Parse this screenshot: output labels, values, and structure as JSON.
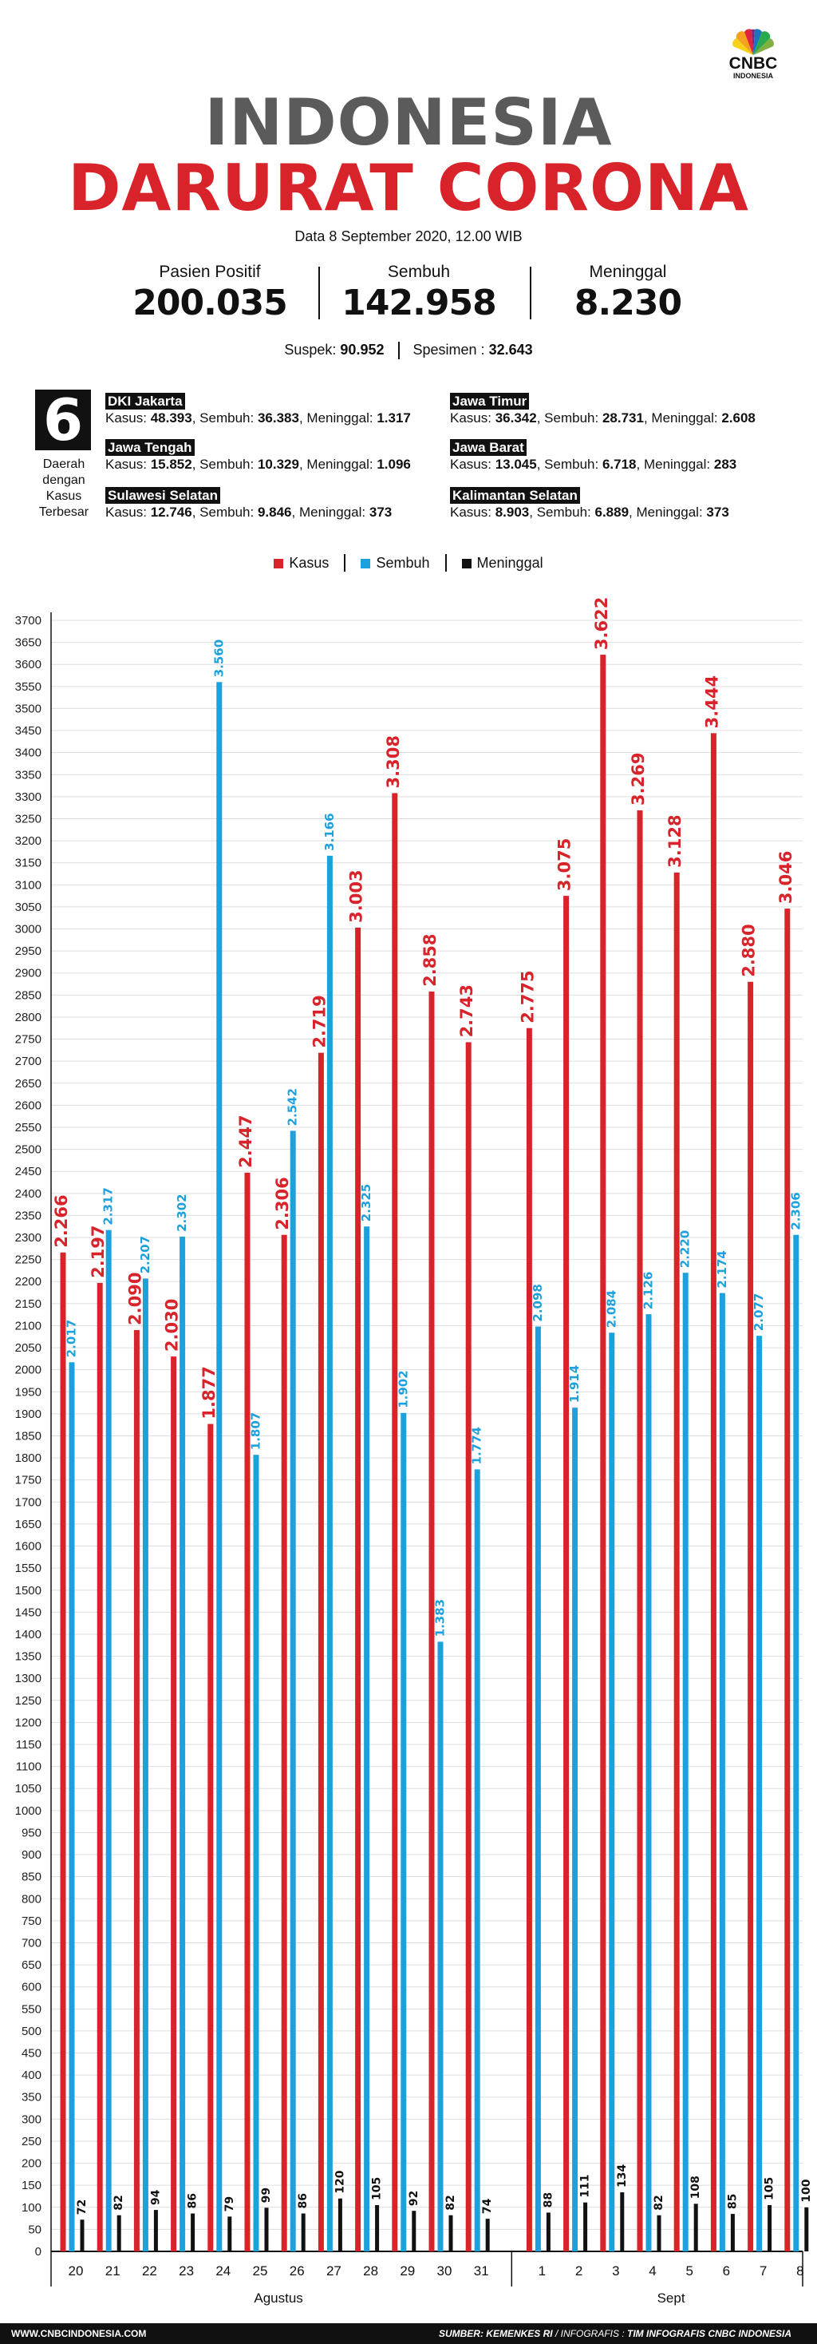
{
  "brand": {
    "name": "CNBC",
    "sub": "INDONESIA"
  },
  "title": {
    "line1": "INDONESIA",
    "line2": "DARURAT CORONA"
  },
  "date_note": "Data 8 September 2020, 12.00 WIB",
  "stats": [
    {
      "label": "Pasien Positif",
      "value": "200.035"
    },
    {
      "label": "Sembuh",
      "value": "142.958"
    },
    {
      "label": "Meninggal",
      "value": "8.230"
    }
  ],
  "suspek": {
    "label": "Suspek:",
    "value": "90.952",
    "spesimen_label": "Spesimen :",
    "spesimen_value": "32.643"
  },
  "regions_block": {
    "number": "6",
    "caption": [
      "Daerah",
      "dengan",
      "Kasus",
      "Terbesar"
    ],
    "items": [
      {
        "name": "DKI Jakarta",
        "kasus_label": "Kasus:",
        "kasus": "48.393",
        "sembuh_label": "Sembuh:",
        "sembuh": "36.383",
        "meninggal_label": "Meninggal:",
        "meninggal": "1.317"
      },
      {
        "name": "Jawa Timur",
        "kasus_label": "Kasus:",
        "kasus": "36.342",
        "sembuh_label": "Sembuh:",
        "sembuh": "28.731",
        "meninggal_label": "Meninggal:",
        "meninggal": "2.608"
      },
      {
        "name": "Jawa Tengah",
        "kasus_label": "Kasus:",
        "kasus": "15.852",
        "sembuh_label": "Sembuh:",
        "sembuh": "10.329",
        "meninggal_label": "Meninggal:",
        "meninggal": "1.096"
      },
      {
        "name": "Jawa Barat",
        "kasus_label": "Kasus:",
        "kasus": "13.045",
        "sembuh_label": "Sembuh:",
        "sembuh": "6.718",
        "meninggal_label": "Meninggal:",
        "meninggal": "283"
      },
      {
        "name": "Sulawesi Selatan",
        "kasus_label": "Kasus:",
        "kasus": "12.746",
        "sembuh_label": "Sembuh:",
        "sembuh": "9.846",
        "meninggal_label": "Meninggal:",
        "meninggal": "373"
      },
      {
        "name": "Kalimantan Selatan",
        "kasus_label": "Kasus:",
        "kasus": "8.903",
        "sembuh_label": "Sembuh:",
        "sembuh": "6.889",
        "meninggal_label": "Meninggal:",
        "meninggal": "373"
      }
    ]
  },
  "legend": [
    {
      "name": "Kasus",
      "color": "#d8232a"
    },
    {
      "name": "Sembuh",
      "color": "#1da1dc"
    },
    {
      "name": "Meninggal",
      "color": "#111111"
    }
  ],
  "chart_data": {
    "type": "bar",
    "categories": [
      "20",
      "21",
      "22",
      "23",
      "24",
      "25",
      "26",
      "27",
      "28",
      "29",
      "30",
      "31",
      "1",
      "2",
      "3",
      "4",
      "5",
      "6",
      "7",
      "8"
    ],
    "month_groups": [
      {
        "label": "Agustus",
        "from": 0,
        "to": 11
      },
      {
        "label": "Sept",
        "from": 12,
        "to": 19
      }
    ],
    "series": [
      {
        "name": "Kasus",
        "color": "#d8232a",
        "values": [
          2266,
          2197,
          2090,
          2030,
          1877,
          2447,
          2306,
          2719,
          3003,
          3308,
          2858,
          2743,
          2775,
          3075,
          3622,
          3269,
          3128,
          3444,
          2880,
          3046
        ],
        "labels": [
          "2.266",
          "2.197",
          "2.090",
          "2.030",
          "1.877",
          "2.447",
          "2.306",
          "2.719",
          "3.003",
          "3.308",
          "2.858",
          "2.743",
          "2.775",
          "3.075",
          "3.622",
          "3.269",
          "3.128",
          "3.444",
          "2.880",
          "3.046"
        ]
      },
      {
        "name": "Sembuh",
        "color": "#1da1dc",
        "values": [
          2017,
          2317,
          2207,
          2302,
          3560,
          1807,
          2542,
          3166,
          2325,
          1902,
          1383,
          1774,
          2098,
          1914,
          2084,
          2126,
          2220,
          2174,
          2077,
          2306
        ],
        "labels": [
          "2.017",
          "2.317",
          "2.207",
          "2.302",
          "3.560",
          "1.807",
          "2.542",
          "3.166",
          "2.325",
          "1.902",
          "1.383",
          "1.774",
          "2.098",
          "1.914",
          "2.084",
          "2.126",
          "2.220",
          "2.174",
          "2.077",
          "2.306"
        ]
      },
      {
        "name": "Meninggal",
        "color": "#111111",
        "values": [
          72,
          82,
          94,
          86,
          79,
          99,
          86,
          120,
          105,
          92,
          82,
          74,
          88,
          111,
          134,
          82,
          108,
          85,
          105,
          100
        ],
        "labels": [
          "72",
          "82",
          "94",
          "86",
          "79",
          "99",
          "86",
          "120",
          "105",
          "92",
          "82",
          "74",
          "88",
          "111",
          "134",
          "82",
          "108",
          "85",
          "105",
          "100"
        ]
      }
    ],
    "ylim": [
      0,
      3700
    ],
    "ytick_step": 50,
    "grid": true
  },
  "footer": {
    "left": "WWW.CNBCINDONESIA.COM",
    "source_label": "SUMBER:",
    "source": "KEMENKES RI",
    "infografis_label": "/ INFOGRAFIS :",
    "infografis": "TIM INFOGRAFIS CNBC INDONESIA"
  }
}
